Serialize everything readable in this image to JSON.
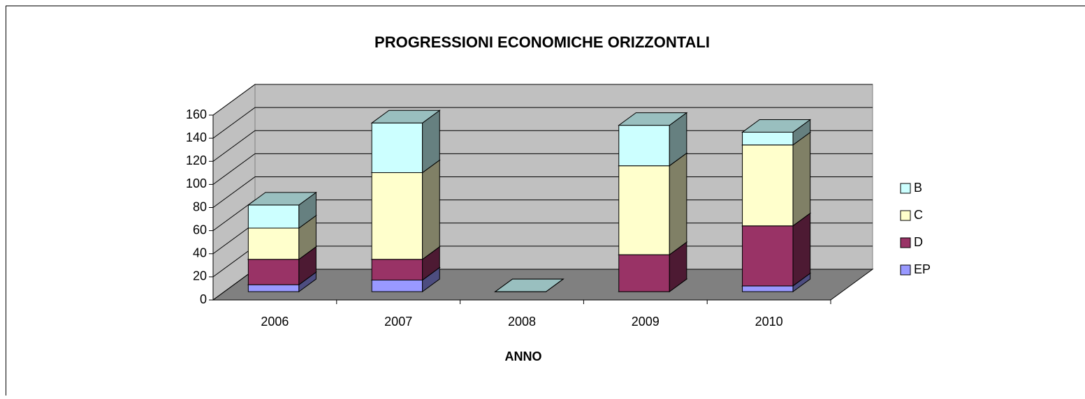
{
  "chart_data": {
    "type": "bar3d_stacked",
    "title": "PROGRESSIONI ECONOMICHE ORIZZONTALI",
    "x_label": "ANNO",
    "categories": [
      "2006",
      "2007",
      "2008",
      "2009",
      "2010"
    ],
    "series": [
      {
        "name": "EP",
        "color": "#9999ff",
        "values": [
          6,
          10,
          0,
          0,
          5
        ]
      },
      {
        "name": "D",
        "color": "#993366",
        "values": [
          22,
          18,
          0,
          32,
          52
        ]
      },
      {
        "name": "C",
        "color": "#ffffcc",
        "values": [
          27,
          75,
          0,
          77,
          70
        ]
      },
      {
        "name": "B",
        "color": "#ccffff",
        "values": [
          20,
          43,
          0,
          35,
          11
        ]
      }
    ],
    "ylim": [
      0,
      160
    ],
    "yticks": [
      0,
      20,
      40,
      60,
      80,
      100,
      120,
      140,
      160
    ],
    "grid": true,
    "legend": "right"
  }
}
